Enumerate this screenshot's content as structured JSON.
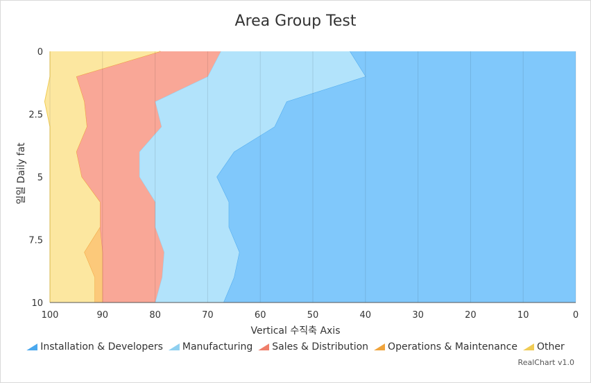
{
  "chart_data": {
    "type": "area",
    "stacked": true,
    "orientation": "inverted",
    "title": "Area Group Test",
    "xlabel": "Vertical 수직축 Axis",
    "ylabel": "일일 Daily fat",
    "value_axis": {
      "min": 0,
      "max": 100,
      "reversed": true,
      "ticks": [
        100,
        90,
        80,
        70,
        60,
        50,
        40,
        30,
        20,
        10,
        0
      ]
    },
    "category_axis": {
      "min": 0,
      "max": 10,
      "ticks": [
        "0",
        "2.5",
        "5",
        "7.5",
        "10"
      ]
    },
    "x": [
      0,
      1,
      2,
      3,
      4,
      5,
      6,
      7,
      8,
      9,
      10
    ],
    "series": [
      {
        "name": "Installation & Developers",
        "color": "#80c8fb",
        "stroke": "#4aa8ee",
        "values": [
          43,
          40,
          55,
          57.3,
          65,
          68.3,
          66,
          66,
          64,
          65,
          67
        ]
      },
      {
        "name": "Manufacturing",
        "color": "#b2e3fb",
        "stroke": "#8fd0f0",
        "values": [
          24.5,
          30,
          25,
          21.5,
          18,
          14.7,
          14,
          14,
          14.3,
          13.7,
          13
        ]
      },
      {
        "name": "Sales & Distribution",
        "color": "#f9a797",
        "stroke": "#ef7e6a",
        "values": [
          11.5,
          25,
          13.5,
          14.2,
          12,
          11,
          10.5,
          10.5,
          11.7,
          11.3,
          10
        ]
      },
      {
        "name": "Operations & Maintenance",
        "color": "#fcc97a",
        "stroke": "#f0a43c",
        "values": [
          0,
          0,
          0,
          0,
          0,
          0,
          0,
          0,
          3.5,
          1.5,
          1.5
        ]
      },
      {
        "name": "Other",
        "color": "#fce7a0",
        "stroke": "#f0cc55",
        "values": [
          21,
          5,
          7.5,
          7,
          5,
          6,
          9.5,
          9.5,
          6.5,
          8.5,
          8.5
        ]
      }
    ],
    "grid": true,
    "legend_position": "bottom"
  },
  "credit": "RealChart v1.0"
}
